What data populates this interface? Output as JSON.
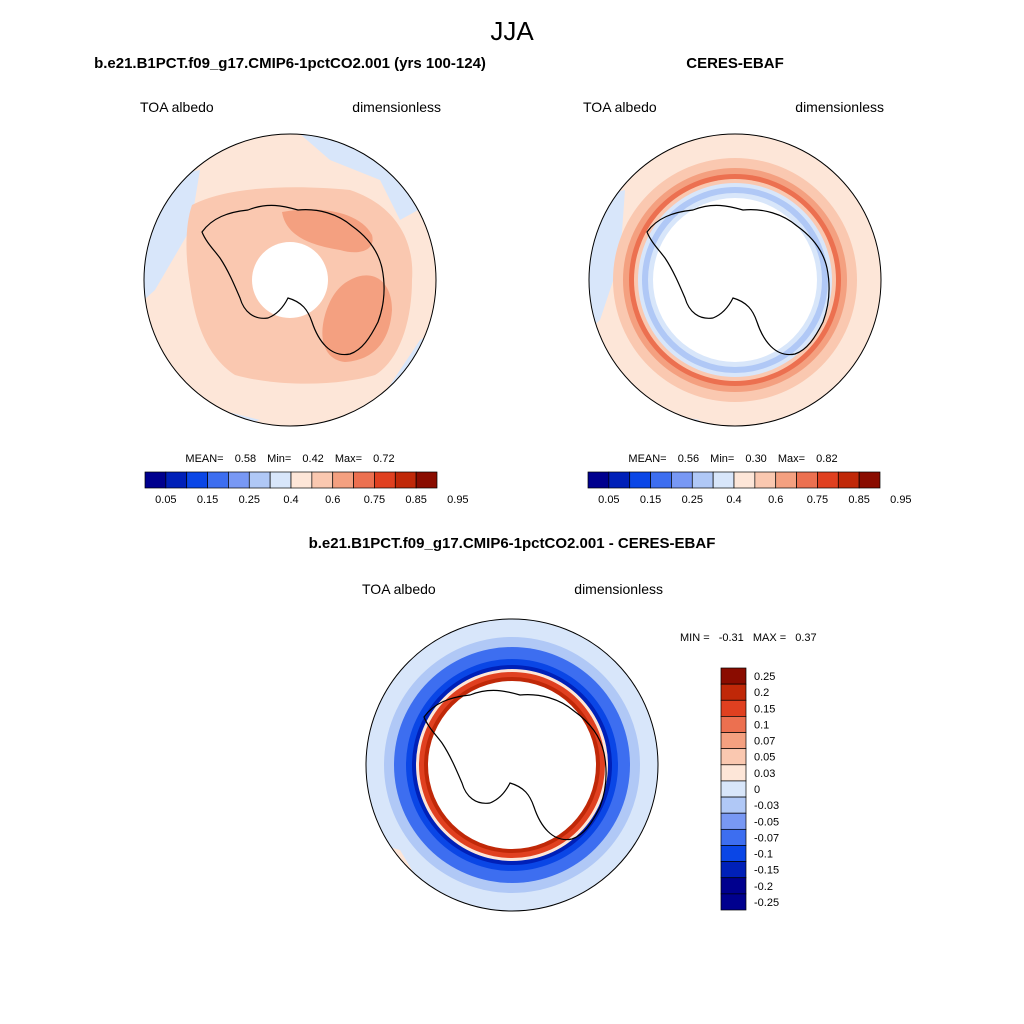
{
  "figure": {
    "title": "JJA"
  },
  "colors": {
    "bwr": [
      "#00008e",
      "#0020b8",
      "#0a46e6",
      "#3d6ef0",
      "#7898f4",
      "#b0c8f6",
      "#d8e6fa",
      "#fde6d8",
      "#fac8b0",
      "#f4a080",
      "#ec7050",
      "#e04020",
      "#c02808",
      "#8a0c00"
    ]
  },
  "panels": [
    {
      "id": "model",
      "title": "b.e21.B1PCT.f09_g17.CMIP6-1pctCO2.001 (yrs 100-124)",
      "left_label": "TOA albedo",
      "right_label": "dimensionless",
      "stats": {
        "mean_label": "MEAN=",
        "mean": "0.58",
        "min_label": "Min=",
        "min": "0.42",
        "max_label": "Max=",
        "max": "0.72"
      },
      "colorbar": {
        "labels": [
          "0.05",
          "0.15",
          "0.25",
          "0.4",
          "0.6",
          "0.75",
          "0.85",
          "0.95"
        ]
      }
    },
    {
      "id": "obs",
      "title": "CERES-EBAF",
      "left_label": "TOA albedo",
      "right_label": "dimensionless",
      "stats": {
        "mean_label": "MEAN=",
        "mean": "0.56",
        "min_label": "Min=",
        "min": "0.30",
        "max_label": "Max=",
        "max": "0.82"
      },
      "colorbar": {
        "labels": [
          "0.05",
          "0.15",
          "0.25",
          "0.4",
          "0.6",
          "0.75",
          "0.85",
          "0.95"
        ]
      }
    },
    {
      "id": "diff",
      "title": "b.e21.B1PCT.f09_g17.CMIP6-1pctCO2.001 - CERES-EBAF",
      "left_label": "TOA albedo",
      "right_label": "dimensionless",
      "stats": {
        "min_label": "MIN =",
        "min": "-0.31",
        "max_label": "MAX =",
        "max": "0.37"
      },
      "colorbar": {
        "labels": [
          "0.25",
          "0.2",
          "0.15",
          "0.1",
          "0.07",
          "0.05",
          "0.03",
          "0",
          "-0.03",
          "-0.05",
          "-0.07",
          "-0.1",
          "-0.15",
          "-0.2",
          "-0.25"
        ]
      }
    }
  ],
  "chart_data": [
    {
      "type": "heatmap",
      "projection": "south-polar-stereographic",
      "title": "b.e21.B1PCT.f09_g17.CMIP6-1pctCO2.001 (yrs 100-124)",
      "variable": "TOA albedo",
      "units": "dimensionless",
      "mean": 0.58,
      "min": 0.42,
      "max": 0.72,
      "contour_levels": [
        0.05,
        0.1,
        0.15,
        0.2,
        0.25,
        0.3,
        0.4,
        0.5,
        0.6,
        0.7,
        0.75,
        0.8,
        0.85,
        0.9,
        0.95
      ]
    },
    {
      "type": "heatmap",
      "projection": "south-polar-stereographic",
      "title": "CERES-EBAF",
      "variable": "TOA albedo",
      "units": "dimensionless",
      "mean": 0.56,
      "min": 0.3,
      "max": 0.82,
      "contour_levels": [
        0.05,
        0.1,
        0.15,
        0.2,
        0.25,
        0.3,
        0.4,
        0.5,
        0.6,
        0.7,
        0.75,
        0.8,
        0.85,
        0.9,
        0.95
      ]
    },
    {
      "type": "heatmap",
      "projection": "south-polar-stereographic",
      "title": "b.e21.B1PCT.f09_g17.CMIP6-1pctCO2.001 - CERES-EBAF",
      "variable": "TOA albedo",
      "units": "dimensionless",
      "min": -0.31,
      "max": 0.37,
      "contour_levels": [
        -0.25,
        -0.2,
        -0.15,
        -0.1,
        -0.07,
        -0.05,
        -0.03,
        0,
        0.03,
        0.05,
        0.07,
        0.1,
        0.15,
        0.2,
        0.25
      ]
    }
  ]
}
